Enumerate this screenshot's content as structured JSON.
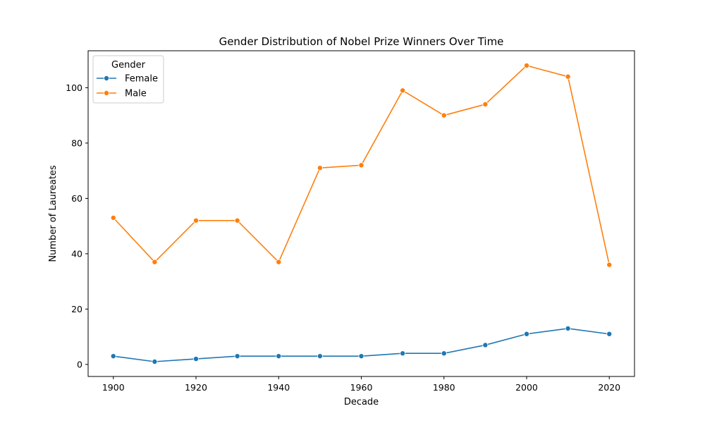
{
  "chart_data": {
    "type": "line",
    "title": "Gender Distribution of Nobel Prize Winners Over Time",
    "xlabel": "Decade",
    "ylabel": "Number of Laureates",
    "x": [
      1900,
      1910,
      1920,
      1930,
      1940,
      1950,
      1960,
      1970,
      1980,
      1990,
      2000,
      2010,
      2020
    ],
    "xticks": [
      "1900",
      "1920",
      "1940",
      "1960",
      "1980",
      "2000",
      "2020"
    ],
    "yticks": [
      "0",
      "20",
      "40",
      "60",
      "80",
      "100"
    ],
    "xlim": [
      1893.9,
      2026.1
    ],
    "ylim": [
      -4.35,
      113.35
    ],
    "grid": false,
    "legend": {
      "title": "Gender",
      "placement": "top-left"
    },
    "series": [
      {
        "name": "Female",
        "color": "#1f77b4",
        "values": [
          3,
          1,
          2,
          3,
          3,
          3,
          3,
          4,
          4,
          7,
          11,
          13,
          11
        ]
      },
      {
        "name": "Male",
        "color": "#ff7f0e",
        "values": [
          53,
          37,
          52,
          52,
          37,
          71,
          72,
          99,
          90,
          94,
          108,
          104,
          36
        ]
      }
    ]
  }
}
